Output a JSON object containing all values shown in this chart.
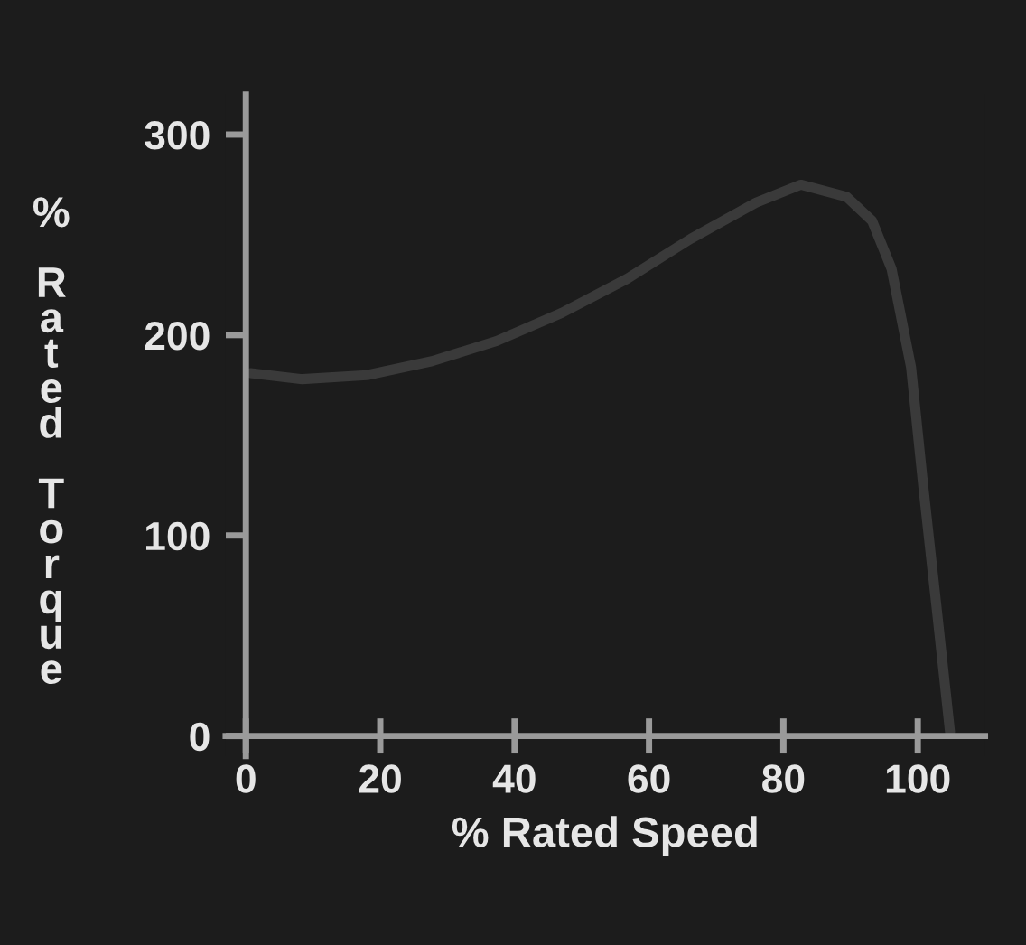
{
  "chart_data": {
    "type": "line",
    "xlabel": "% Rated Speed",
    "ylabel": "% Rated Torque",
    "x": [
      0.7,
      8.4,
      18,
      27.7,
      37.3,
      47,
      56.7,
      66.2,
      75.9,
      82.6,
      89.4,
      93.2,
      96.1,
      99,
      100.9,
      102.9,
      104.8
    ],
    "series": [
      {
        "color": "#3a3a3a",
        "values": [
          181,
          178,
          180,
          187,
          197,
          211,
          228,
          248,
          266,
          275,
          269,
          257,
          233,
          184,
          122,
          61,
          2
        ]
      }
    ],
    "xlim": [
      -3,
      110
    ],
    "ylim": [
      -10,
      320
    ],
    "xticks": [
      0,
      20,
      40,
      60,
      80,
      100
    ],
    "yticks": [
      0,
      100,
      200,
      300
    ],
    "grid": false,
    "legend": false,
    "marker": "none",
    "line_style": "solid"
  }
}
